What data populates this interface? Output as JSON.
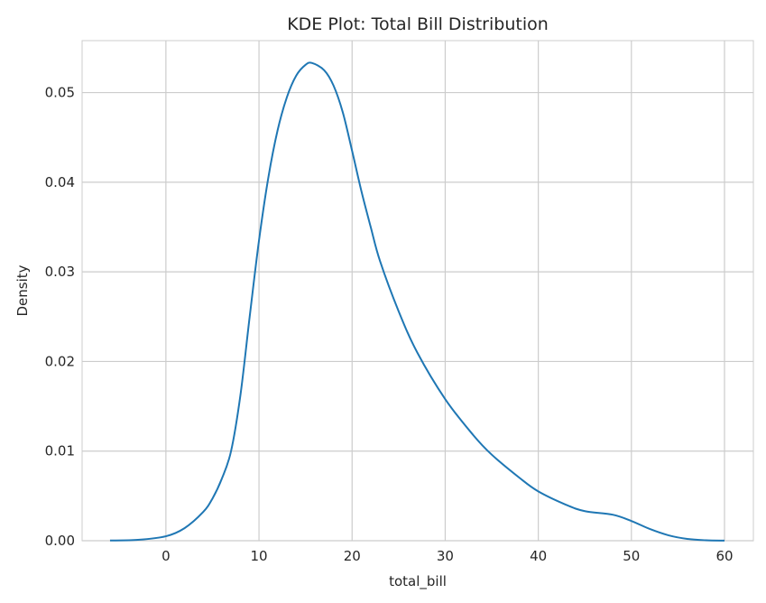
{
  "chart_data": {
    "type": "line",
    "title": "KDE Plot: Total Bill Distribution",
    "xlabel": "total_bill",
    "ylabel": "Density",
    "xlim": [
      -9,
      63.1
    ],
    "ylim": [
      0,
      0.0558
    ],
    "xticks": [
      0,
      10,
      20,
      30,
      40,
      50,
      60
    ],
    "xtick_labels": [
      "0",
      "10",
      "20",
      "30",
      "40",
      "50",
      "60"
    ],
    "yticks": [
      0,
      0.01,
      0.02,
      0.03,
      0.04,
      0.05
    ],
    "ytick_labels": [
      "0.00",
      "0.01",
      "0.02",
      "0.03",
      "0.04",
      "0.05"
    ],
    "grid": true,
    "color": "#1f77b4",
    "series": [
      {
        "x": [
          -6,
          -3,
          0,
          2,
          4,
          5,
          6,
          7,
          8,
          9,
          10,
          11,
          12,
          13,
          14,
          15,
          15.7,
          17,
          18,
          19,
          20,
          21,
          22,
          23,
          25,
          27,
          30,
          33,
          35,
          38,
          40,
          43,
          45,
          48,
          50,
          52,
          54,
          56,
          58,
          60
        ],
        "y": [
          2e-05,
          0.0001,
          0.0005,
          0.0014,
          0.0032,
          0.0047,
          0.0069,
          0.01,
          0.0162,
          0.025,
          0.0335,
          0.0405,
          0.0458,
          0.0495,
          0.0519,
          0.0531,
          0.0533,
          0.0525,
          0.0508,
          0.0478,
          0.0435,
          0.039,
          0.035,
          0.0312,
          0.0256,
          0.021,
          0.0158,
          0.0118,
          0.0096,
          0.007,
          0.0055,
          0.004,
          0.0033,
          0.0029,
          0.0022,
          0.0013,
          0.0006,
          0.0002,
          5e-05,
          1e-05
        ]
      }
    ]
  }
}
